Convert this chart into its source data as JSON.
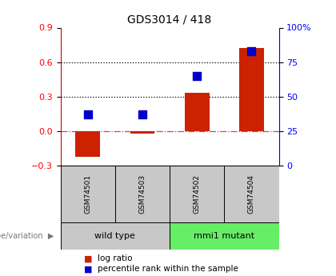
{
  "title": "GDS3014 / 418",
  "samples": [
    "GSM74501",
    "GSM74503",
    "GSM74502",
    "GSM74504"
  ],
  "log_ratios": [
    -0.22,
    -0.025,
    0.33,
    0.72
  ],
  "percentile_ranks": [
    37,
    37,
    65,
    83
  ],
  "groups": [
    {
      "label": "wild type",
      "samples": [
        0,
        1
      ],
      "color": "#c8c8c8"
    },
    {
      "label": "mmi1 mutant",
      "samples": [
        2,
        3
      ],
      "color": "#66ee66"
    }
  ],
  "ylim_left": [
    -0.3,
    0.9
  ],
  "ylim_right": [
    0,
    100
  ],
  "left_ticks": [
    -0.3,
    0.0,
    0.3,
    0.6,
    0.9
  ],
  "right_ticks": [
    0,
    25,
    50,
    75,
    100
  ],
  "right_tick_labels": [
    "0",
    "25",
    "50",
    "75",
    "100%"
  ],
  "hline_dotted": [
    0.3,
    0.6
  ],
  "hline_dashed_zero": 0.0,
  "bar_color": "#cc2200",
  "marker_color": "#0000cc",
  "bar_width": 0.45,
  "marker_size": 55,
  "legend_items": [
    {
      "label": "log ratio",
      "color": "#cc2200"
    },
    {
      "label": "percentile rank within the sample",
      "color": "#0000cc"
    }
  ],
  "group_label_prefix": "genotype/variation",
  "background_plot": "#ffffff",
  "background_group_gray": "#c8c8c8",
  "background_group_green": "#66ee66"
}
